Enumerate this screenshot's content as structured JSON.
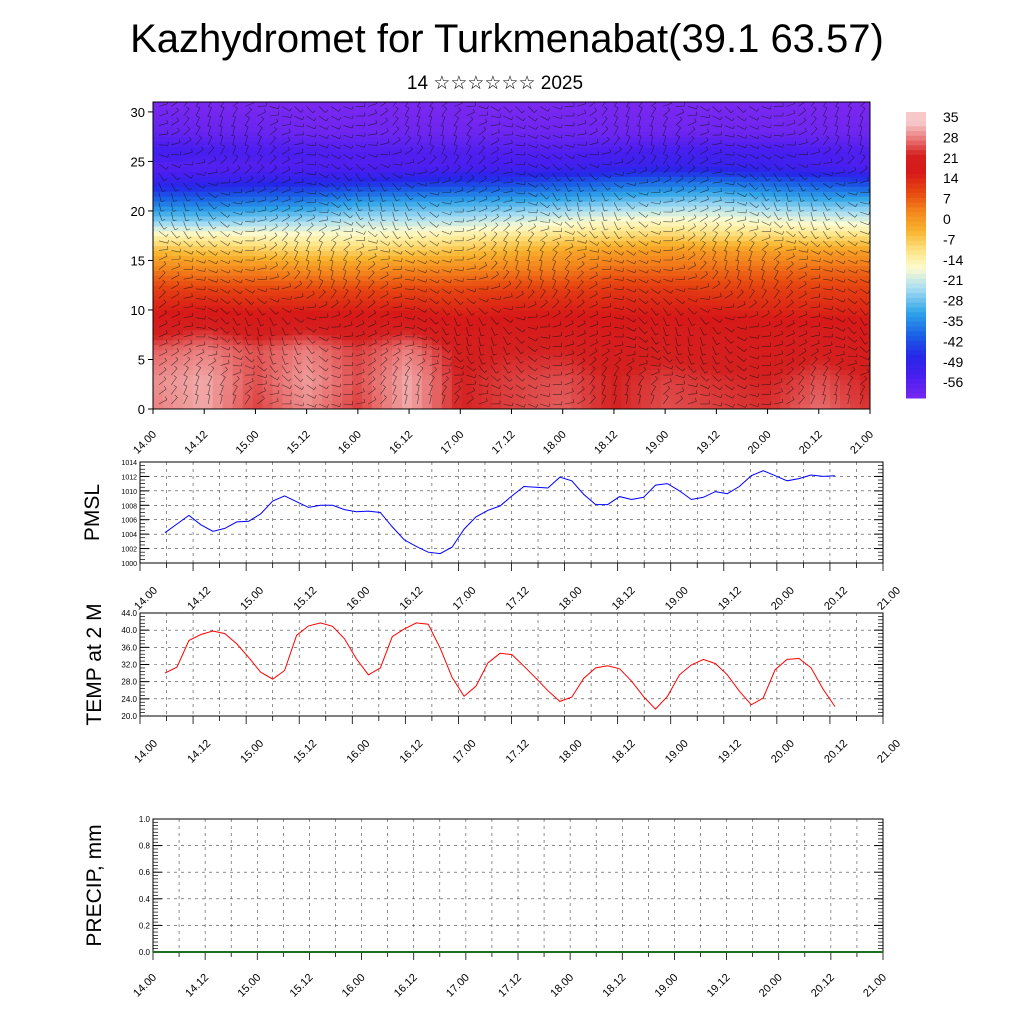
{
  "page": {
    "title": "Kazhydromet for Turkmenabat(39.1 63.57)",
    "subtitle": "14 ☆☆☆☆☆☆ 2025"
  },
  "chart_data": [
    {
      "type": "heatmap",
      "title": "",
      "ylim": [
        0,
        31
      ],
      "y_ticks": [
        "0",
        "5",
        "10",
        "15",
        "20",
        "25",
        "30"
      ],
      "x_ticks": [
        "14.00",
        "14.12",
        "15.00",
        "15.12",
        "16.00",
        "16.12",
        "17.00",
        "17.12",
        "18.00",
        "18.12",
        "19.00",
        "19.12",
        "20.00",
        "20.12",
        "21.00"
      ],
      "overlay": "wind barbs",
      "colorbar": {
        "labels": [
          "35",
          "28",
          "21",
          "14",
          "7",
          "0",
          "-7",
          "-14",
          "-21",
          "-28",
          "-35",
          "-42",
          "-49",
          "-56"
        ],
        "colors": [
          "#f3b5b5",
          "#e04646",
          "#d71818",
          "#e84a10",
          "#f3831c",
          "#f8b42e",
          "#fde68a",
          "#fbfbd2",
          "#a4dcf2",
          "#2fa4e8",
          "#1a5fe6",
          "#2626e8",
          "#4a1ef0",
          "#7a28f0"
        ]
      },
      "levels": [
        {
          "y": 0,
          "temps": [
            30,
            33,
            26,
            31,
            26,
            33,
            24,
            26,
            28,
            24,
            27,
            26,
            25,
            29,
            25
          ]
        },
        {
          "y": 3,
          "temps": [
            31,
            33,
            27,
            32,
            27,
            33,
            24,
            26,
            27,
            24,
            26,
            25,
            24,
            27,
            24
          ]
        },
        {
          "y": 6,
          "temps": [
            28,
            30,
            27,
            30,
            26,
            30,
            23,
            24,
            24,
            22,
            23,
            22,
            21,
            23,
            21
          ]
        },
        {
          "y": 8,
          "temps": [
            22,
            25,
            22,
            24,
            22,
            24,
            20,
            21,
            21,
            20,
            21,
            20,
            20,
            21,
            20
          ]
        },
        {
          "y": 10,
          "temps": [
            17,
            18,
            17,
            17,
            17,
            17,
            16,
            17,
            17,
            17,
            17,
            17,
            16,
            16,
            16
          ]
        },
        {
          "y": 12,
          "temps": [
            13,
            13,
            12,
            12,
            12,
            12,
            12,
            13,
            13,
            14,
            14,
            13,
            13,
            13,
            13
          ]
        },
        {
          "y": 14,
          "temps": [
            6,
            5,
            5,
            4,
            4,
            5,
            5,
            6,
            6,
            8,
            8,
            8,
            8,
            8,
            8
          ]
        },
        {
          "y": 16,
          "temps": [
            -3,
            -4,
            -5,
            -6,
            -6,
            -5,
            -4,
            -2,
            0,
            1,
            2,
            2,
            1,
            1,
            1
          ]
        },
        {
          "y": 17.5,
          "temps": [
            -12,
            -12,
            -13,
            -13,
            -13,
            -12,
            -11,
            -9,
            -8,
            -7,
            -6,
            -7,
            -7,
            -8,
            -8
          ]
        },
        {
          "y": 19,
          "temps": [
            -24,
            -24,
            -23,
            -22,
            -20,
            -20,
            -20,
            -18,
            -16,
            -14,
            -14,
            -14,
            -15,
            -16,
            -17
          ]
        },
        {
          "y": 21,
          "temps": [
            -36,
            -36,
            -35,
            -34,
            -31,
            -30,
            -30,
            -29,
            -28,
            -26,
            -25,
            -24,
            -26,
            -28,
            -28
          ]
        },
        {
          "y": 23,
          "temps": [
            -48,
            -48,
            -47,
            -46,
            -45,
            -44,
            -43,
            -42,
            -40,
            -38,
            -37,
            -36,
            -38,
            -40,
            -42
          ]
        },
        {
          "y": 24.5,
          "temps": [
            -54,
            -54,
            -54,
            -53,
            -53,
            -53,
            -52,
            -51,
            -50,
            -49,
            -48,
            -48,
            -49,
            -51,
            -53
          ]
        },
        {
          "y": 26,
          "temps": [
            -50,
            -51,
            -52,
            -52,
            -53,
            -53,
            -53,
            -53,
            -53,
            -52,
            -51,
            -51,
            -51,
            -52,
            -53
          ]
        },
        {
          "y": 28,
          "temps": [
            -56,
            -57,
            -57,
            -58,
            -58,
            -58,
            -58,
            -58,
            -58,
            -58,
            -58,
            -58,
            -58,
            -58,
            -58
          ]
        },
        {
          "y": 31,
          "temps": [
            -60,
            -60,
            -60,
            -60,
            -60,
            -60,
            -60,
            -60,
            -60,
            -60,
            -60,
            -60,
            -60,
            -60,
            -60
          ]
        }
      ]
    },
    {
      "type": "line",
      "ylabel": "PMSL",
      "ylim": [
        1000,
        1014
      ],
      "y_ticks": [
        "1000",
        "1002",
        "1004",
        "1006",
        "1008",
        "1010",
        "1012",
        "1014"
      ],
      "x_ticks": [
        "14.00",
        "14.12",
        "15.00",
        "15.12",
        "16.00",
        "16.12",
        "17.00",
        "17.12",
        "18.00",
        "18.12",
        "19.00",
        "19.12",
        "20.00",
        "20.12",
        "21.00"
      ],
      "color": "#0000ff",
      "series": [
        {
          "values": [
            1004.2,
            1005.4,
            1006.6,
            1005.3,
            1004.4,
            1004.8,
            1005.7,
            1005.8,
            1006.8,
            1008.6,
            1009.3,
            1008.5,
            1007.7,
            1008.0,
            1008.0,
            1007.4,
            1007.1,
            1007.2,
            1007.0,
            1005.0,
            1003.2,
            1002.3,
            1001.5,
            1001.3,
            1002.2,
            1004.7,
            1006.4,
            1007.3,
            1007.9,
            1009.3,
            1010.6,
            1010.5,
            1010.4,
            1011.9,
            1011.4,
            1009.5,
            1008.1,
            1008.1,
            1009.2,
            1008.8,
            1009.1,
            1010.8,
            1011.0,
            1010.0,
            1008.8,
            1009.1,
            1009.9,
            1009.6,
            1010.6,
            1012.1,
            1012.8,
            1012.1,
            1011.4,
            1011.7,
            1012.2,
            1012.0,
            1012.1
          ]
        }
      ]
    },
    {
      "type": "line",
      "ylabel": "TEMP at 2 M",
      "ylim": [
        20,
        44
      ],
      "y_ticks": [
        "20.0",
        "24.0",
        "28.0",
        "32.0",
        "36.0",
        "40.0",
        "44.0"
      ],
      "x_ticks": [
        "14.00",
        "14.12",
        "15.00",
        "15.12",
        "16.00",
        "16.12",
        "17.00",
        "17.12",
        "18.00",
        "18.12",
        "19.00",
        "19.12",
        "20.00",
        "20.12",
        "21.00"
      ],
      "color": "#ff0000",
      "series": [
        {
          "values": [
            30.0,
            31.4,
            37.6,
            39.0,
            39.8,
            39.2,
            36.8,
            33.6,
            30.2,
            28.6,
            30.6,
            38.8,
            41.0,
            41.7,
            40.9,
            38.0,
            33.3,
            29.6,
            31.2,
            38.5,
            40.3,
            41.7,
            41.4,
            35.8,
            29.0,
            24.6,
            27.0,
            32.4,
            34.6,
            34.3,
            31.6,
            28.8,
            25.9,
            23.4,
            24.4,
            28.8,
            31.2,
            31.7,
            31.0,
            28.1,
            24.5,
            21.6,
            24.6,
            29.6,
            31.9,
            33.2,
            32.2,
            29.6,
            25.8,
            22.6,
            24.2,
            30.8,
            33.2,
            33.4,
            31.2,
            26.3,
            22.2
          ]
        }
      ]
    },
    {
      "type": "line",
      "ylabel": "PRECIP, mm",
      "ylim": [
        0,
        1
      ],
      "y_ticks": [
        "0.0",
        "0.2",
        "0.4",
        "0.6",
        "0.8",
        "1.0"
      ],
      "x_ticks": [
        "14.00",
        "14.12",
        "15.00",
        "15.12",
        "16.00",
        "16.12",
        "17.00",
        "17.12",
        "18.00",
        "18.12",
        "19.00",
        "19.12",
        "20.00",
        "20.12",
        "21.00"
      ],
      "color": "#1f6f1f",
      "series": [
        {
          "values": [
            0,
            0,
            0,
            0,
            0,
            0,
            0,
            0,
            0,
            0,
            0,
            0,
            0,
            0,
            0,
            0,
            0,
            0,
            0,
            0,
            0,
            0,
            0,
            0,
            0,
            0,
            0,
            0,
            0,
            0,
            0,
            0,
            0,
            0,
            0,
            0,
            0,
            0,
            0,
            0,
            0,
            0,
            0,
            0,
            0,
            0,
            0,
            0,
            0,
            0,
            0,
            0,
            0,
            0,
            0,
            0,
            0
          ]
        }
      ]
    }
  ]
}
